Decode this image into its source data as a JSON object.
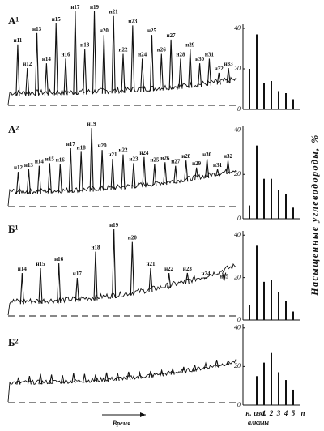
{
  "figure": {
    "y_label": "Насыщенные углеводороды, %",
    "time_label": "Время",
    "alkanes_label": "алканы",
    "n_label": "n"
  },
  "chart_data": [
    {
      "type": "chromatogram",
      "title": "А¹",
      "ylim": [
        0,
        100
      ],
      "categories": [
        "н11",
        "н12",
        "н13",
        "н14",
        "н15",
        "н16",
        "н17",
        "н18",
        "н19",
        "н20",
        "н21",
        "н22",
        "н23",
        "н24",
        "н25",
        "н26",
        "н27",
        "н28",
        "н29",
        "н30",
        "н31",
        "н32",
        "н33"
      ],
      "values": [
        60,
        35,
        72,
        40,
        82,
        45,
        95,
        55,
        95,
        70,
        90,
        50,
        80,
        45,
        70,
        50,
        65,
        45,
        55,
        40,
        45,
        30,
        35
      ]
    },
    {
      "type": "bar",
      "ylim": [
        0,
        42
      ],
      "yticks": [
        0,
        20,
        40
      ],
      "color": "#111",
      "categories": [
        "н.",
        "изо.",
        "1",
        "2",
        "3",
        "4",
        "5"
      ],
      "values": [
        20,
        37,
        13,
        14,
        9,
        8,
        5
      ]
    },
    {
      "type": "chromatogram",
      "title": "А²",
      "ylim": [
        0,
        100
      ],
      "categories": [
        "н12",
        "н13",
        "н14",
        "н15",
        "н16",
        "н17",
        "н18",
        "н19",
        "н20",
        "н21",
        "н22",
        "н23",
        "н24",
        "н25",
        "н26",
        "н27",
        "н28",
        "н29",
        "н30",
        "н31",
        "н32"
      ],
      "values": [
        35,
        38,
        42,
        45,
        44,
        62,
        58,
        85,
        60,
        50,
        55,
        45,
        52,
        44,
        46,
        42,
        48,
        40,
        50,
        38,
        48
      ]
    },
    {
      "type": "bar",
      "ylim": [
        0,
        42
      ],
      "yticks": [
        0,
        20,
        40
      ],
      "color": "#111",
      "categories": [
        "н.",
        "изо.",
        "1",
        "2",
        "3",
        "4",
        "5"
      ],
      "values": [
        6,
        33,
        18,
        18,
        13,
        11,
        5
      ]
    },
    {
      "type": "chromatogram",
      "title": "Б¹",
      "ylim": [
        0,
        100
      ],
      "categories": [
        "н14",
        "н15",
        "н16",
        "н17",
        "н18",
        "н19",
        "н20",
        "н21",
        "н22",
        "н23",
        "н24",
        "н25"
      ],
      "values": [
        40,
        45,
        50,
        35,
        62,
        85,
        72,
        45,
        40,
        40,
        35,
        32
      ]
    },
    {
      "type": "bar",
      "ylim": [
        0,
        42
      ],
      "yticks": [
        0,
        20,
        40
      ],
      "color": "#111",
      "categories": [
        "н.",
        "изо.",
        "1",
        "2",
        "3",
        "4",
        "5"
      ],
      "values": [
        7,
        35,
        18,
        19,
        13,
        9,
        4
      ]
    },
    {
      "type": "chromatogram",
      "title": "Б²",
      "ylim": [
        0,
        100
      ],
      "categories": [
        null,
        null,
        null,
        null,
        null,
        null,
        null,
        null,
        null,
        null,
        null,
        null,
        null,
        null,
        null,
        null,
        null,
        null,
        null,
        null
      ],
      "values": [
        30,
        32,
        35,
        34,
        33,
        36,
        35,
        34,
        37,
        36,
        38,
        37,
        39,
        40,
        42,
        45,
        48,
        50,
        55,
        52
      ]
    },
    {
      "type": "bar",
      "ylim": [
        0,
        42
      ],
      "yticks": [
        0,
        20,
        40
      ],
      "color": "#111",
      "categories": [
        "н.",
        "изо.",
        "1",
        "2",
        "3",
        "4",
        "5"
      ],
      "values": [
        null,
        15,
        22,
        27,
        17,
        13,
        8
      ]
    }
  ]
}
